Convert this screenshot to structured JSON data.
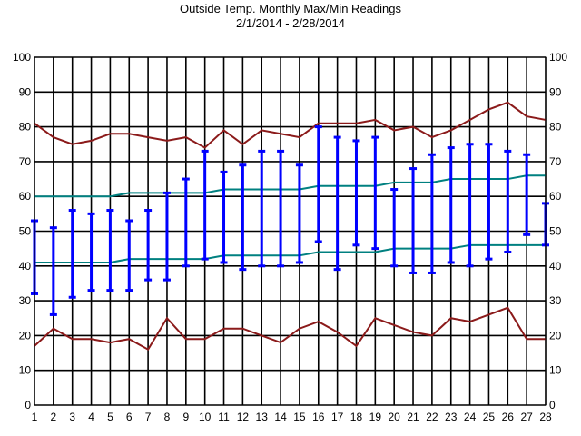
{
  "chart_data": {
    "type": "line",
    "title": "Outside Temp. Monthly Max/Min Readings",
    "subtitle": "2/1/2014 - 2/28/2014",
    "xlabel": "",
    "ylabel": "",
    "ylim": [
      0,
      100
    ],
    "yticks": [
      0,
      10,
      20,
      30,
      40,
      50,
      60,
      70,
      80,
      90,
      100
    ],
    "x": [
      1,
      2,
      3,
      4,
      5,
      6,
      7,
      8,
      9,
      10,
      11,
      12,
      13,
      14,
      15,
      16,
      17,
      18,
      19,
      20,
      21,
      22,
      23,
      24,
      25,
      26,
      27,
      28
    ],
    "grid": true,
    "series": [
      {
        "kind": "line",
        "color": "#8b1a1a",
        "values": [
          81,
          77,
          75,
          76,
          78,
          78,
          77,
          76,
          77,
          74,
          79,
          75,
          79,
          78,
          77,
          81,
          81,
          81,
          82,
          79,
          80,
          77,
          79,
          82,
          85,
          87,
          83,
          82
        ]
      },
      {
        "kind": "line",
        "color": "#8b1a1a",
        "values": [
          17,
          22,
          19,
          19,
          18,
          19,
          16,
          25,
          19,
          19,
          22,
          22,
          20,
          18,
          22,
          24,
          21,
          17,
          25,
          23,
          21,
          20,
          25,
          24,
          26,
          28,
          19,
          19
        ]
      },
      {
        "kind": "line",
        "color": "#008080",
        "values": [
          60,
          60,
          60,
          60,
          60,
          61,
          61,
          61,
          61,
          61,
          62,
          62,
          62,
          62,
          62,
          63,
          63,
          63,
          63,
          64,
          64,
          64,
          65,
          65,
          65,
          65,
          66,
          66
        ]
      },
      {
        "kind": "line",
        "color": "#008080",
        "values": [
          41,
          41,
          41,
          41,
          41,
          42,
          42,
          42,
          42,
          42,
          43,
          43,
          43,
          43,
          43,
          44,
          44,
          44,
          44,
          45,
          45,
          45,
          45,
          46,
          46,
          46,
          46,
          46
        ]
      },
      {
        "kind": "range",
        "color": "#0000ff",
        "high": [
          53,
          51,
          56,
          55,
          56,
          53,
          56,
          61,
          65,
          73,
          67,
          69,
          73,
          73,
          69,
          80,
          77,
          76,
          77,
          62,
          68,
          72,
          74,
          75,
          75,
          73,
          72,
          58
        ],
        "low": [
          32,
          26,
          31,
          33,
          33,
          33,
          36,
          36,
          40,
          42,
          41,
          39,
          40,
          40,
          41,
          47,
          39,
          46,
          45,
          40,
          38,
          38,
          41,
          40,
          42,
          44,
          49,
          46
        ]
      }
    ]
  }
}
